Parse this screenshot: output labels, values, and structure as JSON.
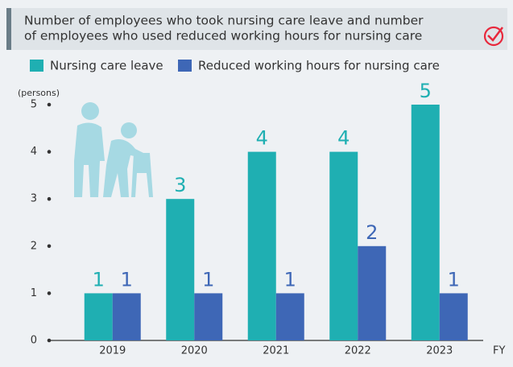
{
  "chart_data": {
    "type": "bar",
    "title": [
      "Number of employees who took nursing care leave and number",
      "of employees who used reduced working hours for nursing care"
    ],
    "y_label": "(persons)",
    "x_label": "FY",
    "categories": [
      "2019",
      "2020",
      "2021",
      "2022",
      "2023"
    ],
    "series": [
      {
        "name": "Nursing care leave",
        "color": "#1fafb2",
        "values": [
          1,
          3,
          4,
          4,
          5
        ]
      },
      {
        "name": "Reduced working hours for nursing care",
        "color": "#3e67b6",
        "values": [
          1,
          1,
          1,
          2,
          1
        ]
      }
    ],
    "ylim": [
      0,
      5
    ],
    "yticks": [
      0,
      1,
      2,
      3,
      4,
      5
    ],
    "grid": false
  }
}
